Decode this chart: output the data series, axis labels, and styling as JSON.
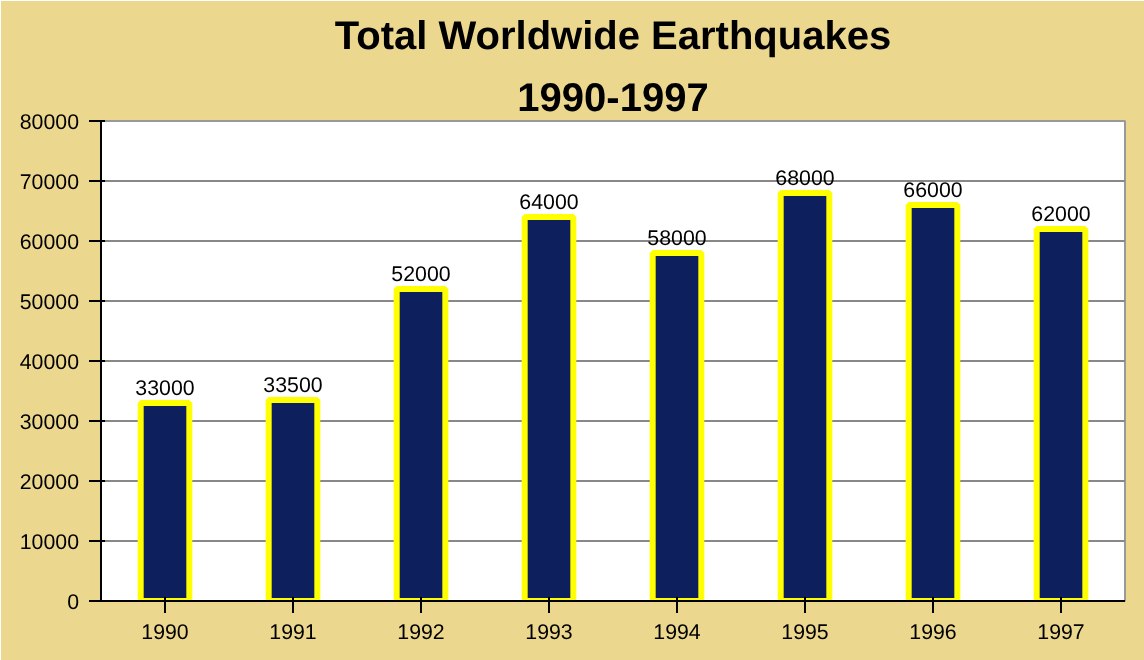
{
  "chart_data": {
    "type": "bar",
    "title": "Total Worldwide Earthquakes",
    "subtitle": "1990-1997",
    "categories": [
      "1990",
      "1991",
      "1992",
      "1993",
      "1994",
      "1995",
      "1996",
      "1997"
    ],
    "values": [
      33000,
      33500,
      52000,
      64000,
      58000,
      68000,
      66000,
      62000
    ],
    "color": "#0d1f5c",
    "ylim": [
      0,
      80000
    ],
    "yticks": [
      0,
      10000,
      20000,
      30000,
      40000,
      50000,
      60000,
      70000,
      80000
    ],
    "grid": "y",
    "data_labels": true
  }
}
